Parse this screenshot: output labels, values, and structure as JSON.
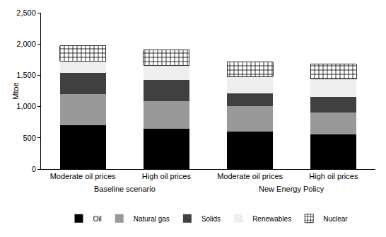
{
  "chart_data": {
    "type": "bar",
    "stacked": true,
    "y_label": "Mtoe",
    "categories": [
      "Moderate oil prices",
      "High oil prices",
      "Moderate oil prices",
      "High oil prices"
    ],
    "category_groups": [
      "Baseline scenario",
      "Baseline scenario",
      "New Energy Policy",
      "New Energy Policy"
    ],
    "series": [
      {
        "name": "Oil",
        "color": "#000000",
        "values": [
          700,
          650,
          600,
          555
        ]
      },
      {
        "name": "Natural gas",
        "color": "#999999",
        "values": [
          500,
          435,
          405,
          345
        ]
      },
      {
        "name": "Solids",
        "color": "#404040",
        "values": [
          340,
          345,
          210,
          255
        ]
      },
      {
        "name": "Renewables",
        "color": "#eeeeee",
        "values": [
          190,
          230,
          265,
          285
        ]
      },
      {
        "name": "Nuclear",
        "color": "#ffffff",
        "marker": "cross",
        "values": [
          240,
          245,
          230,
          235
        ]
      }
    ],
    "ylim": [
      0,
      2500
    ],
    "yticks": [
      0,
      {
        "value": 500,
        "label": "500"
      },
      {
        "value": 1000,
        "label": "1,000"
      },
      {
        "value": 1500,
        "label": "1,500"
      },
      {
        "value": 2000,
        "label": "2,000"
      },
      {
        "value": 2500,
        "label": "2,500"
      }
    ],
    "grid": false,
    "legend": "bottom"
  }
}
